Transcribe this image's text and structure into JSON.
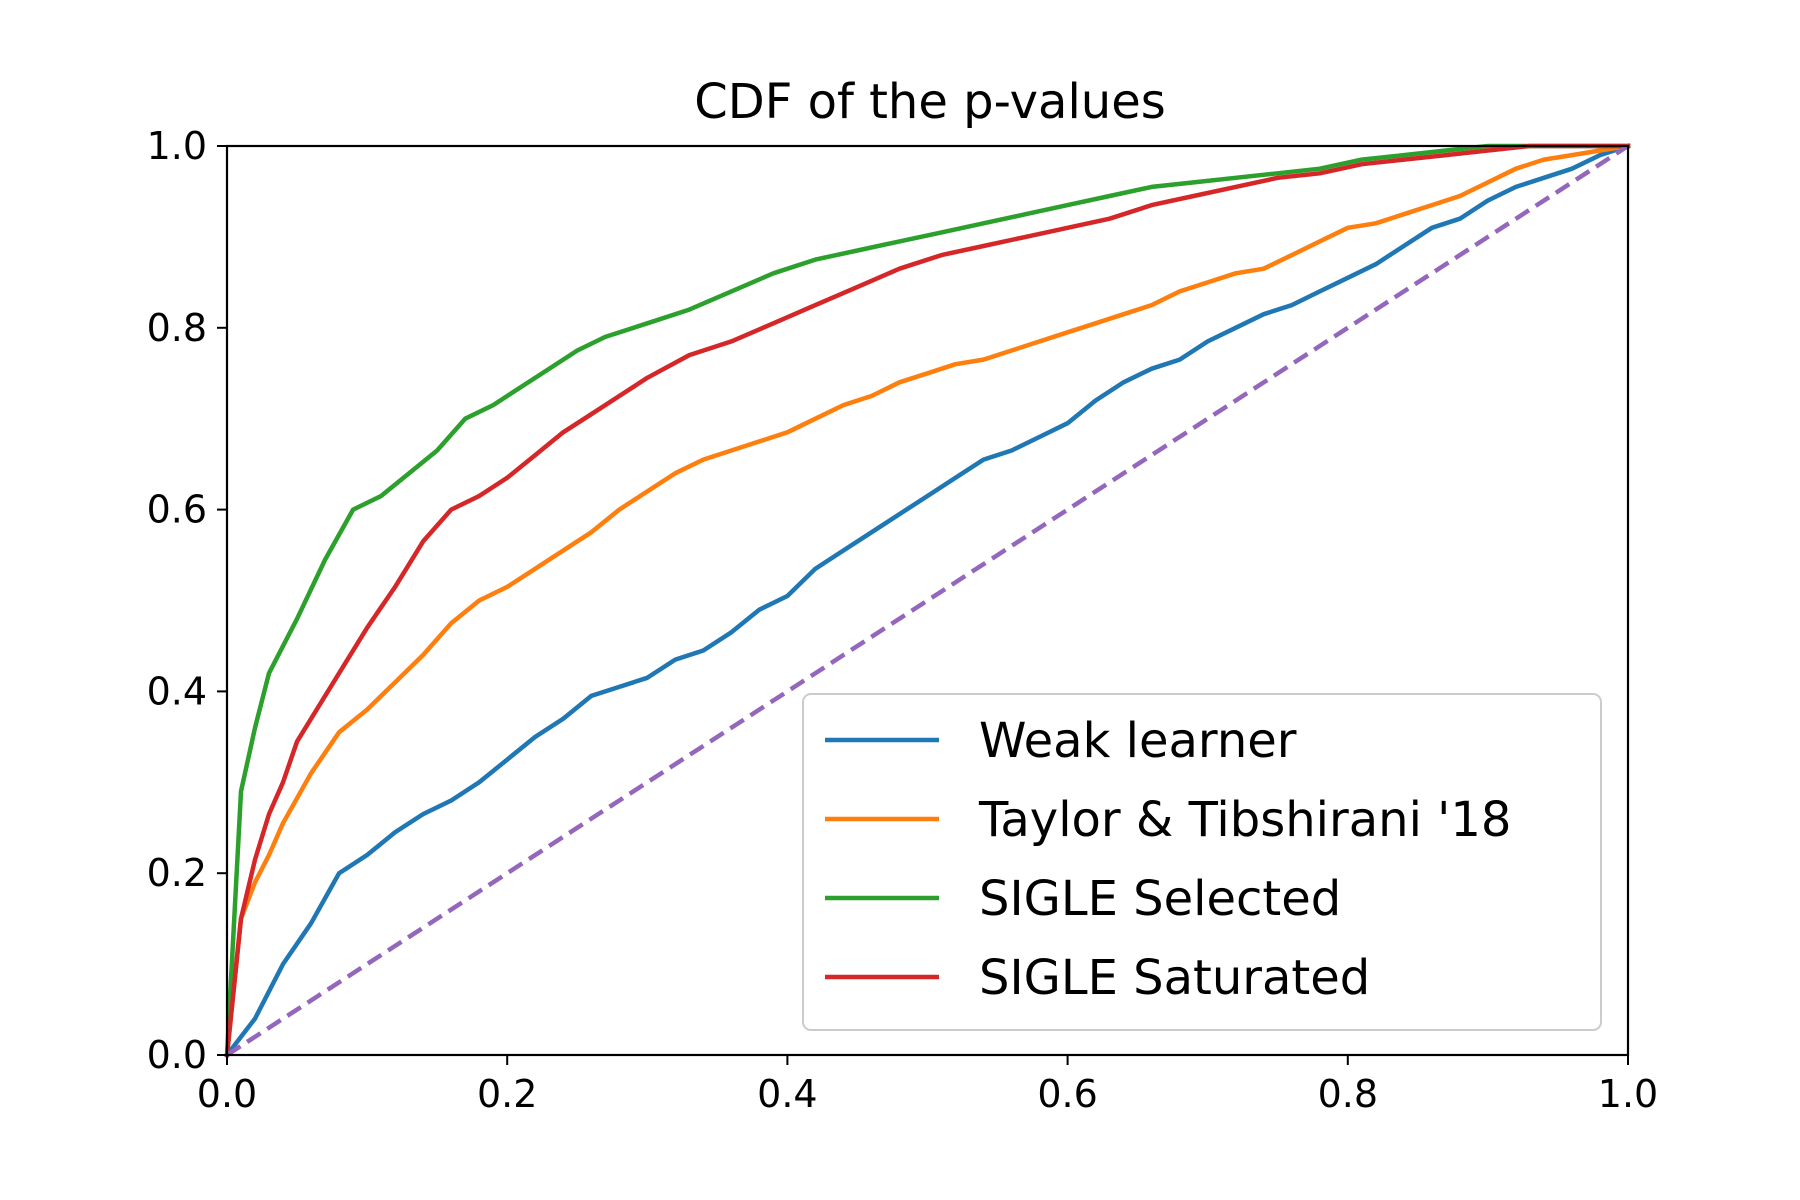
{
  "chart_data": {
    "type": "line",
    "title": "CDF of the p-values",
    "xlabel": "",
    "ylabel": "",
    "xlim": [
      0,
      1
    ],
    "ylim": [
      0,
      1
    ],
    "xticks": [
      "0.0",
      "0.2",
      "0.4",
      "0.6",
      "0.8",
      "1.0"
    ],
    "yticks": [
      "0.0",
      "0.2",
      "0.4",
      "0.6",
      "0.8",
      "1.0"
    ],
    "grid": false,
    "legend_position": "lower-right",
    "series": [
      {
        "name": "Weak learner",
        "color": "#1f77b4",
        "dash": "solid",
        "x": [
          0,
          0.02,
          0.04,
          0.06,
          0.08,
          0.1,
          0.12,
          0.14,
          0.16,
          0.18,
          0.2,
          0.22,
          0.24,
          0.26,
          0.28,
          0.3,
          0.32,
          0.34,
          0.36,
          0.38,
          0.4,
          0.42,
          0.44,
          0.46,
          0.48,
          0.5,
          0.52,
          0.54,
          0.56,
          0.58,
          0.6,
          0.62,
          0.64,
          0.66,
          0.68,
          0.7,
          0.72,
          0.74,
          0.76,
          0.78,
          0.8,
          0.82,
          0.84,
          0.86,
          0.88,
          0.9,
          0.92,
          0.94,
          0.96,
          0.98,
          1.0
        ],
        "y": [
          0,
          0.04,
          0.1,
          0.145,
          0.2,
          0.22,
          0.245,
          0.265,
          0.28,
          0.3,
          0.325,
          0.35,
          0.37,
          0.395,
          0.405,
          0.415,
          0.435,
          0.445,
          0.465,
          0.49,
          0.505,
          0.535,
          0.555,
          0.575,
          0.595,
          0.615,
          0.635,
          0.655,
          0.665,
          0.68,
          0.695,
          0.72,
          0.74,
          0.755,
          0.765,
          0.785,
          0.8,
          0.815,
          0.825,
          0.84,
          0.855,
          0.87,
          0.89,
          0.91,
          0.92,
          0.94,
          0.955,
          0.965,
          0.975,
          0.99,
          1.0
        ]
      },
      {
        "name": "Taylor & Tibshirani '18",
        "color": "#ff7f0e",
        "dash": "solid",
        "x": [
          0,
          0.01,
          0.02,
          0.03,
          0.04,
          0.06,
          0.08,
          0.1,
          0.12,
          0.14,
          0.16,
          0.18,
          0.2,
          0.22,
          0.24,
          0.26,
          0.28,
          0.3,
          0.32,
          0.34,
          0.36,
          0.38,
          0.4,
          0.42,
          0.44,
          0.46,
          0.48,
          0.5,
          0.52,
          0.54,
          0.56,
          0.58,
          0.6,
          0.62,
          0.64,
          0.66,
          0.68,
          0.7,
          0.72,
          0.74,
          0.76,
          0.78,
          0.8,
          0.82,
          0.84,
          0.86,
          0.88,
          0.9,
          0.92,
          0.94,
          0.96,
          0.98,
          1.0
        ],
        "y": [
          0,
          0.15,
          0.19,
          0.22,
          0.255,
          0.31,
          0.355,
          0.38,
          0.41,
          0.44,
          0.475,
          0.5,
          0.515,
          0.535,
          0.555,
          0.575,
          0.6,
          0.62,
          0.64,
          0.655,
          0.665,
          0.675,
          0.685,
          0.7,
          0.715,
          0.725,
          0.74,
          0.75,
          0.76,
          0.765,
          0.775,
          0.785,
          0.795,
          0.805,
          0.815,
          0.825,
          0.84,
          0.85,
          0.86,
          0.865,
          0.88,
          0.895,
          0.91,
          0.915,
          0.925,
          0.935,
          0.945,
          0.96,
          0.975,
          0.985,
          0.99,
          0.995,
          1.0
        ]
      },
      {
        "name": "SIGLE Selected",
        "color": "#2ca02c",
        "dash": "solid",
        "x": [
          0,
          0.01,
          0.02,
          0.03,
          0.05,
          0.07,
          0.09,
          0.11,
          0.13,
          0.15,
          0.17,
          0.19,
          0.21,
          0.23,
          0.25,
          0.27,
          0.3,
          0.33,
          0.36,
          0.39,
          0.42,
          0.45,
          0.48,
          0.51,
          0.54,
          0.57,
          0.6,
          0.63,
          0.66,
          0.69,
          0.72,
          0.75,
          0.78,
          0.81,
          0.84,
          0.87,
          0.9,
          0.93,
          0.96,
          1.0
        ],
        "y": [
          0,
          0.29,
          0.36,
          0.42,
          0.48,
          0.545,
          0.6,
          0.615,
          0.64,
          0.665,
          0.7,
          0.715,
          0.735,
          0.755,
          0.775,
          0.79,
          0.805,
          0.82,
          0.84,
          0.86,
          0.875,
          0.885,
          0.895,
          0.905,
          0.915,
          0.925,
          0.935,
          0.945,
          0.955,
          0.96,
          0.965,
          0.97,
          0.975,
          0.985,
          0.99,
          0.995,
          1.0,
          1.0,
          1.0,
          1.0
        ]
      },
      {
        "name": "SIGLE Saturated",
        "color": "#d62728",
        "dash": "solid",
        "x": [
          0,
          0.01,
          0.02,
          0.03,
          0.04,
          0.05,
          0.06,
          0.08,
          0.1,
          0.12,
          0.14,
          0.16,
          0.18,
          0.2,
          0.22,
          0.24,
          0.26,
          0.28,
          0.3,
          0.33,
          0.36,
          0.39,
          0.42,
          0.45,
          0.48,
          0.51,
          0.54,
          0.57,
          0.6,
          0.63,
          0.66,
          0.69,
          0.72,
          0.75,
          0.78,
          0.81,
          0.84,
          0.87,
          0.9,
          0.93,
          0.96,
          1.0
        ],
        "y": [
          0,
          0.15,
          0.215,
          0.265,
          0.3,
          0.345,
          0.37,
          0.42,
          0.47,
          0.515,
          0.565,
          0.6,
          0.615,
          0.635,
          0.66,
          0.685,
          0.705,
          0.725,
          0.745,
          0.77,
          0.785,
          0.805,
          0.825,
          0.845,
          0.865,
          0.88,
          0.89,
          0.9,
          0.91,
          0.92,
          0.935,
          0.945,
          0.955,
          0.965,
          0.97,
          0.98,
          0.985,
          0.99,
          0.995,
          1.0,
          1.0,
          1.0
        ]
      },
      {
        "name": "",
        "color": "#9467bd",
        "dash": "dashed",
        "x": [
          0,
          1
        ],
        "y": [
          0,
          1
        ]
      }
    ],
    "legend": [
      "Weak learner",
      "Taylor & Tibshirani '18",
      "SIGLE Selected",
      "SIGLE Saturated"
    ]
  }
}
